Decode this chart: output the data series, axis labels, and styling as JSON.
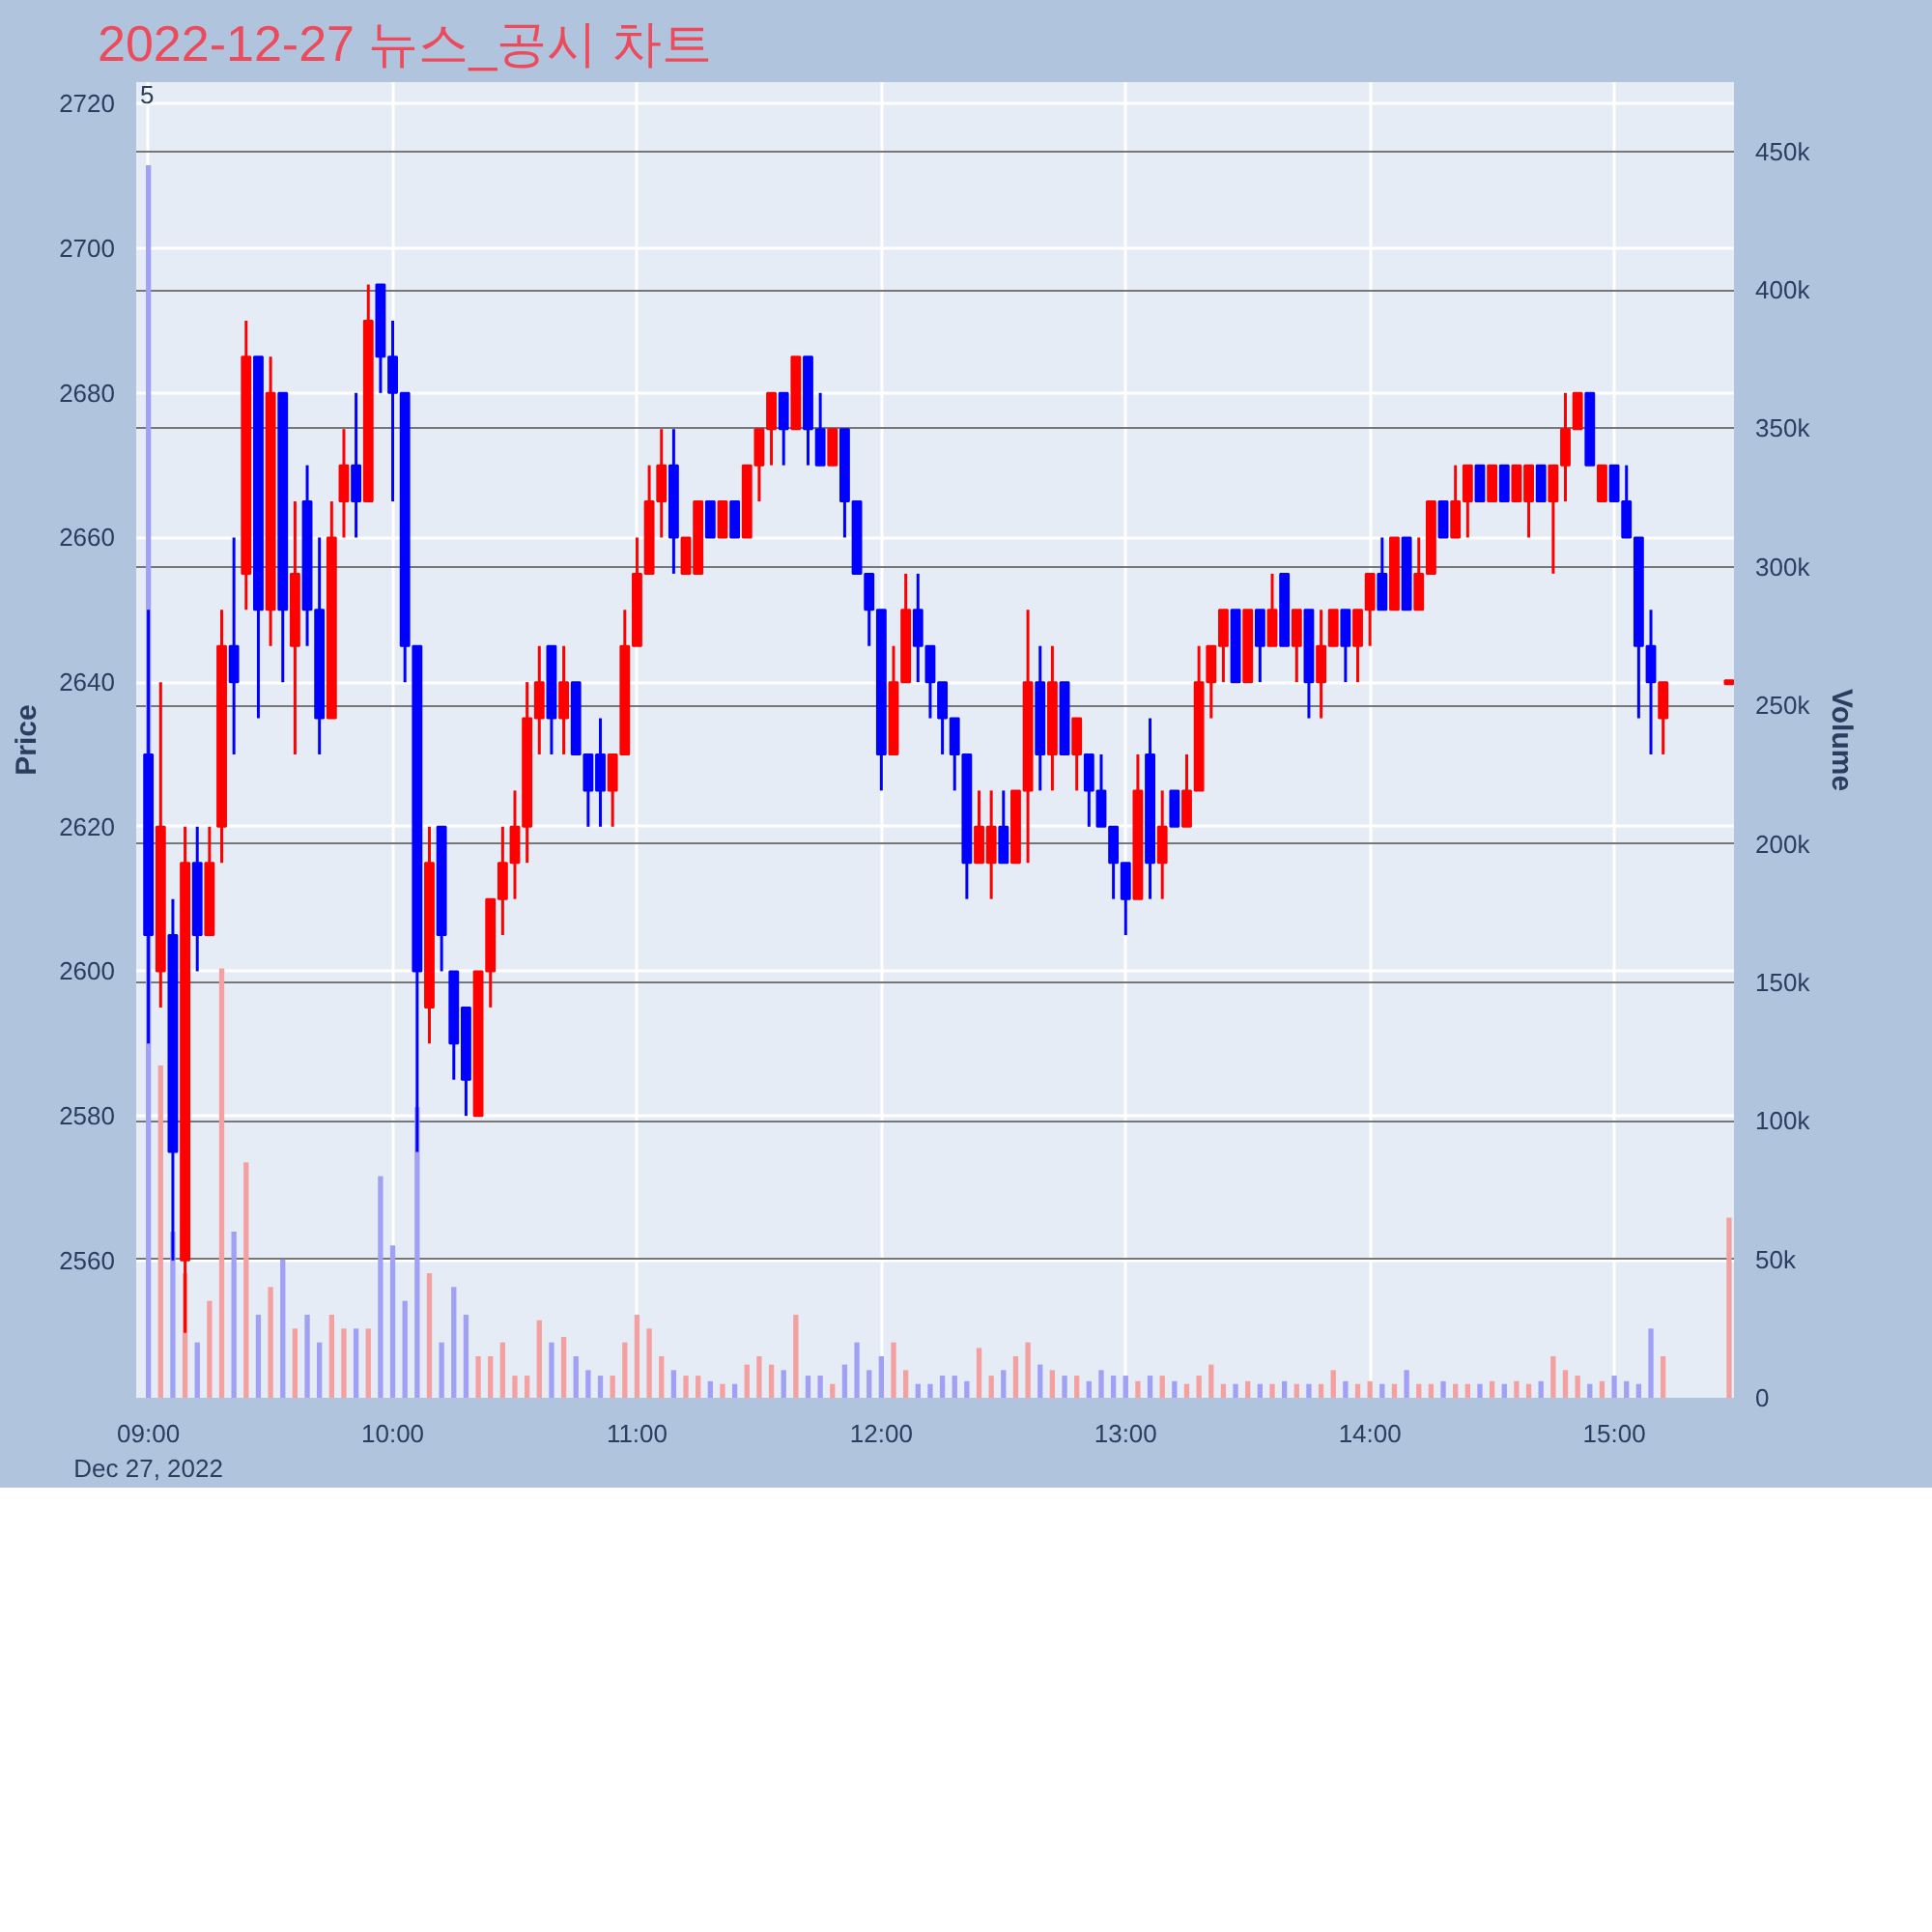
{
  "chart_data": {
    "type": "candlestick",
    "title": "2022-12-27 뉴스_공시 차트",
    "ylabel": "Price",
    "y2label": "Volume",
    "annotations": [
      "5"
    ],
    "x": [
      9.0,
      9.05,
      9.1,
      9.15,
      9.2,
      9.25,
      9.3,
      9.35,
      9.4,
      9.45,
      9.5,
      9.55,
      9.6,
      9.65,
      9.7,
      9.75,
      9.8,
      9.85,
      9.9,
      9.95,
      10.0,
      10.05,
      10.1,
      10.15,
      10.2,
      10.25,
      10.3,
      10.35,
      10.4,
      10.45,
      10.5,
      10.55,
      10.6,
      10.65,
      10.7,
      10.75,
      10.8,
      10.85,
      10.9,
      10.95,
      11.0,
      11.05,
      11.1,
      11.15,
      11.2,
      11.25,
      11.3,
      11.35,
      11.4,
      11.45,
      11.5,
      11.55,
      11.6,
      11.65,
      11.7,
      11.75,
      11.8,
      11.85,
      11.9,
      11.95,
      12.0,
      12.05,
      12.1,
      12.15,
      12.2,
      12.25,
      12.3,
      12.35,
      12.4,
      12.45,
      12.5,
      12.55,
      12.6,
      12.65,
      12.7,
      12.75,
      12.8,
      12.85,
      12.9,
      12.95,
      13.0,
      13.05,
      13.1,
      13.15,
      13.2,
      13.25,
      13.3,
      13.35,
      13.4,
      13.45,
      13.5,
      13.55,
      13.6,
      13.65,
      13.7,
      13.75,
      13.8,
      13.85,
      13.9,
      13.95,
      14.0,
      14.05,
      14.1,
      14.15,
      14.2,
      14.25,
      14.3,
      14.35,
      14.4,
      14.45,
      14.5,
      14.55,
      14.6,
      14.65,
      14.7,
      14.75,
      14.8,
      14.85,
      14.9,
      14.95,
      15.0,
      15.05,
      15.1,
      15.15,
      15.2,
      15.47
    ],
    "ohlc": [
      [
        2630,
        2650,
        2590,
        2605
      ],
      [
        2600,
        2640,
        2595,
        2620
      ],
      [
        2605,
        2610,
        2560,
        2575
      ],
      [
        2560,
        2620,
        2550,
        2615
      ],
      [
        2615,
        2620,
        2600,
        2605
      ],
      [
        2605,
        2620,
        2605,
        2615
      ],
      [
        2620,
        2650,
        2615,
        2645
      ],
      [
        2645,
        2660,
        2630,
        2640
      ],
      [
        2655,
        2690,
        2650,
        2685
      ],
      [
        2685,
        2685,
        2635,
        2650
      ],
      [
        2650,
        2685,
        2645,
        2680
      ],
      [
        2680,
        2680,
        2640,
        2650
      ],
      [
        2645,
        2665,
        2630,
        2655
      ],
      [
        2665,
        2670,
        2645,
        2650
      ],
      [
        2650,
        2660,
        2630,
        2635
      ],
      [
        2635,
        2665,
        2635,
        2660
      ],
      [
        2665,
        2675,
        2660,
        2670
      ],
      [
        2670,
        2680,
        2660,
        2665
      ],
      [
        2665,
        2695,
        2665,
        2690
      ],
      [
        2695,
        2695,
        2680,
        2685
      ],
      [
        2685,
        2690,
        2665,
        2680
      ],
      [
        2680,
        2680,
        2640,
        2645
      ],
      [
        2645,
        2645,
        2575,
        2600
      ],
      [
        2595,
        2620,
        2590,
        2615
      ],
      [
        2620,
        2620,
        2600,
        2605
      ],
      [
        2600,
        2600,
        2585,
        2590
      ],
      [
        2595,
        2595,
        2580,
        2585
      ],
      [
        2580,
        2600,
        2580,
        2600
      ],
      [
        2600,
        2610,
        2595,
        2610
      ],
      [
        2610,
        2620,
        2605,
        2615
      ],
      [
        2615,
        2625,
        2610,
        2620
      ],
      [
        2620,
        2640,
        2615,
        2635
      ],
      [
        2635,
        2645,
        2630,
        2640
      ],
      [
        2645,
        2645,
        2630,
        2635
      ],
      [
        2635,
        2645,
        2630,
        2640
      ],
      [
        2640,
        2640,
        2630,
        2630
      ],
      [
        2630,
        2630,
        2620,
        2625
      ],
      [
        2630,
        2635,
        2620,
        2625
      ],
      [
        2625,
        2630,
        2620,
        2630
      ],
      [
        2630,
        2650,
        2630,
        2645
      ],
      [
        2645,
        2660,
        2645,
        2655
      ],
      [
        2655,
        2670,
        2655,
        2665
      ],
      [
        2665,
        2675,
        2660,
        2670
      ],
      [
        2670,
        2675,
        2655,
        2660
      ],
      [
        2655,
        2660,
        2655,
        2660
      ],
      [
        2655,
        2665,
        2655,
        2665
      ],
      [
        2665,
        2665,
        2660,
        2660
      ],
      [
        2660,
        2665,
        2660,
        2665
      ],
      [
        2665,
        2665,
        2660,
        2660
      ],
      [
        2660,
        2670,
        2660,
        2670
      ],
      [
        2670,
        2675,
        2665,
        2675
      ],
      [
        2675,
        2680,
        2670,
        2680
      ],
      [
        2680,
        2680,
        2670,
        2675
      ],
      [
        2675,
        2685,
        2675,
        2685
      ],
      [
        2685,
        2685,
        2670,
        2675
      ],
      [
        2675,
        2680,
        2670,
        2670
      ],
      [
        2670,
        2675,
        2670,
        2675
      ],
      [
        2675,
        2675,
        2660,
        2665
      ],
      [
        2665,
        2665,
        2655,
        2655
      ],
      [
        2655,
        2655,
        2645,
        2650
      ],
      [
        2650,
        2650,
        2625,
        2630
      ],
      [
        2630,
        2645,
        2630,
        2640
      ],
      [
        2640,
        2655,
        2640,
        2650
      ],
      [
        2650,
        2655,
        2640,
        2645
      ],
      [
        2645,
        2645,
        2635,
        2640
      ],
      [
        2640,
        2640,
        2630,
        2635
      ],
      [
        2635,
        2635,
        2625,
        2630
      ],
      [
        2630,
        2630,
        2610,
        2615
      ],
      [
        2615,
        2625,
        2615,
        2620
      ],
      [
        2615,
        2625,
        2610,
        2620
      ],
      [
        2620,
        2625,
        2615,
        2615
      ],
      [
        2615,
        2625,
        2615,
        2625
      ],
      [
        2625,
        2650,
        2615,
        2640
      ],
      [
        2640,
        2645,
        2625,
        2630
      ],
      [
        2630,
        2645,
        2625,
        2640
      ],
      [
        2640,
        2640,
        2630,
        2630
      ],
      [
        2630,
        2635,
        2625,
        2635
      ],
      [
        2630,
        2630,
        2620,
        2625
      ],
      [
        2625,
        2630,
        2620,
        2620
      ],
      [
        2620,
        2620,
        2610,
        2615
      ],
      [
        2615,
        2615,
        2605,
        2610
      ],
      [
        2610,
        2630,
        2610,
        2625
      ],
      [
        2630,
        2635,
        2610,
        2615
      ],
      [
        2615,
        2625,
        2610,
        2620
      ],
      [
        2625,
        2625,
        2620,
        2620
      ],
      [
        2620,
        2630,
        2620,
        2625
      ],
      [
        2625,
        2645,
        2625,
        2640
      ],
      [
        2640,
        2645,
        2635,
        2645
      ],
      [
        2645,
        2650,
        2640,
        2650
      ],
      [
        2650,
        2650,
        2640,
        2640
      ],
      [
        2640,
        2650,
        2640,
        2650
      ],
      [
        2650,
        2650,
        2640,
        2645
      ],
      [
        2645,
        2655,
        2645,
        2650
      ],
      [
        2655,
        2655,
        2645,
        2645
      ],
      [
        2645,
        2650,
        2640,
        2650
      ],
      [
        2650,
        2650,
        2635,
        2640
      ],
      [
        2640,
        2650,
        2635,
        2645
      ],
      [
        2645,
        2650,
        2645,
        2650
      ],
      [
        2650,
        2650,
        2640,
        2645
      ],
      [
        2645,
        2650,
        2640,
        2650
      ],
      [
        2650,
        2655,
        2645,
        2655
      ],
      [
        2655,
        2660,
        2650,
        2650
      ],
      [
        2650,
        2660,
        2650,
        2660
      ],
      [
        2660,
        2660,
        2650,
        2650
      ],
      [
        2650,
        2660,
        2650,
        2655
      ],
      [
        2655,
        2665,
        2655,
        2665
      ],
      [
        2665,
        2665,
        2660,
        2660
      ],
      [
        2660,
        2670,
        2660,
        2665
      ],
      [
        2665,
        2670,
        2660,
        2670
      ],
      [
        2670,
        2670,
        2665,
        2665
      ],
      [
        2665,
        2670,
        2665,
        2670
      ],
      [
        2670,
        2670,
        2665,
        2665
      ],
      [
        2665,
        2670,
        2665,
        2670
      ],
      [
        2665,
        2670,
        2660,
        2670
      ],
      [
        2670,
        2670,
        2665,
        2665
      ],
      [
        2665,
        2670,
        2655,
        2670
      ],
      [
        2670,
        2680,
        2665,
        2675
      ],
      [
        2675,
        2680,
        2675,
        2680
      ],
      [
        2680,
        2680,
        2670,
        2670
      ],
      [
        2665,
        2670,
        2665,
        2670
      ],
      [
        2670,
        2670,
        2665,
        2665
      ],
      [
        2665,
        2670,
        2660,
        2660
      ],
      [
        2660,
        2660,
        2635,
        2645
      ],
      [
        2645,
        2650,
        2630,
        2640
      ],
      [
        2635,
        2640,
        2630,
        2640
      ],
      [
        2640,
        2640,
        2640,
        2640
      ]
    ],
    "colors": [
      "#0000ff",
      "#ff0000",
      "#0000ff",
      "#ff0000",
      "#0000ff",
      "#ff0000",
      "#ff0000",
      "#0000ff",
      "#ff0000",
      "#0000ff",
      "#ff0000",
      "#0000ff",
      "#ff0000",
      "#0000ff",
      "#0000ff",
      "#ff0000",
      "#ff0000",
      "#0000ff",
      "#ff0000",
      "#0000ff",
      "#0000ff",
      "#0000ff",
      "#0000ff",
      "#ff0000",
      "#0000ff",
      "#0000ff",
      "#0000ff",
      "#ff0000",
      "#ff0000",
      "#ff0000",
      "#ff0000",
      "#ff0000",
      "#ff0000",
      "#0000ff",
      "#ff0000",
      "#0000ff",
      "#0000ff",
      "#0000ff",
      "#ff0000",
      "#ff0000",
      "#ff0000",
      "#ff0000",
      "#ff0000",
      "#0000ff",
      "#ff0000",
      "#ff0000",
      "#0000ff",
      "#ff0000",
      "#0000ff",
      "#ff0000",
      "#ff0000",
      "#ff0000",
      "#0000ff",
      "#ff0000",
      "#0000ff",
      "#0000ff",
      "#ff0000",
      "#0000ff",
      "#0000ff",
      "#0000ff",
      "#0000ff",
      "#ff0000",
      "#ff0000",
      "#0000ff",
      "#0000ff",
      "#0000ff",
      "#0000ff",
      "#0000ff",
      "#ff0000",
      "#ff0000",
      "#0000ff",
      "#ff0000",
      "#ff0000",
      "#0000ff",
      "#ff0000",
      "#0000ff",
      "#ff0000",
      "#0000ff",
      "#0000ff",
      "#0000ff",
      "#0000ff",
      "#ff0000",
      "#0000ff",
      "#ff0000",
      "#0000ff",
      "#ff0000",
      "#ff0000",
      "#ff0000",
      "#ff0000",
      "#0000ff",
      "#ff0000",
      "#0000ff",
      "#ff0000",
      "#0000ff",
      "#ff0000",
      "#0000ff",
      "#ff0000",
      "#ff0000",
      "#0000ff",
      "#ff0000",
      "#ff0000",
      "#0000ff",
      "#ff0000",
      "#0000ff",
      "#ff0000",
      "#ff0000",
      "#0000ff",
      "#ff0000",
      "#ff0000",
      "#0000ff",
      "#ff0000",
      "#0000ff",
      "#ff0000",
      "#ff0000",
      "#0000ff",
      "#ff0000",
      "#ff0000",
      "#ff0000",
      "#0000ff",
      "#ff0000",
      "#0000ff",
      "#0000ff",
      "#0000ff",
      "#0000ff",
      "#ff0000",
      "#ff0000"
    ],
    "series": [
      {
        "type": "bar",
        "axis": "y2",
        "values": [
          445000,
          120000,
          60000,
          45000,
          20000,
          35000,
          155000,
          60000,
          85000,
          30000,
          40000,
          50000,
          25000,
          30000,
          20000,
          30000,
          25000,
          25000,
          25000,
          80000,
          55000,
          35000,
          105000,
          45000,
          20000,
          40000,
          30000,
          15000,
          15000,
          20000,
          8000,
          8000,
          28000,
          20000,
          22000,
          15000,
          10000,
          8000,
          8000,
          20000,
          30000,
          25000,
          15000,
          10000,
          8000,
          8000,
          6000,
          5000,
          5000,
          12000,
          15000,
          12000,
          10000,
          30000,
          8000,
          8000,
          5000,
          12000,
          20000,
          10000,
          15000,
          20000,
          10000,
          5000,
          5000,
          8000,
          8000,
          6000,
          18000,
          8000,
          10000,
          15000,
          20000,
          12000,
          10000,
          8000,
          8000,
          6000,
          10000,
          8000,
          8000,
          6000,
          8000,
          8000,
          6000,
          5000,
          8000,
          12000,
          5000,
          5000,
          6000,
          5000,
          5000,
          6000,
          5000,
          5000,
          5000,
          10000,
          6000,
          5000,
          6000,
          5000,
          5000,
          10000,
          5000,
          5000,
          6000,
          5000,
          5000,
          5000,
          6000,
          5000,
          6000,
          5000,
          6000,
          15000,
          10000,
          8000,
          5000,
          6000,
          8000,
          6000,
          5000,
          25000,
          15000,
          65000
        ],
        "colors": [
          "#a0a0f5",
          "#f5a0a0",
          "#a0a0f5",
          "#f5a0a0",
          "#a0a0f5",
          "#f5a0a0",
          "#f5a0a0",
          "#a0a0f5",
          "#f5a0a0",
          "#a0a0f5",
          "#f5a0a0",
          "#a0a0f5",
          "#f5a0a0",
          "#a0a0f5",
          "#a0a0f5",
          "#f5a0a0",
          "#f5a0a0",
          "#a0a0f5",
          "#f5a0a0",
          "#a0a0f5",
          "#a0a0f5",
          "#a0a0f5",
          "#a0a0f5",
          "#f5a0a0",
          "#a0a0f5",
          "#a0a0f5",
          "#a0a0f5",
          "#f5a0a0",
          "#f5a0a0",
          "#f5a0a0",
          "#f5a0a0",
          "#f5a0a0",
          "#f5a0a0",
          "#a0a0f5",
          "#f5a0a0",
          "#a0a0f5",
          "#a0a0f5",
          "#a0a0f5",
          "#f5a0a0",
          "#f5a0a0",
          "#f5a0a0",
          "#f5a0a0",
          "#f5a0a0",
          "#a0a0f5",
          "#f5a0a0",
          "#f5a0a0",
          "#a0a0f5",
          "#f5a0a0",
          "#a0a0f5",
          "#f5a0a0",
          "#f5a0a0",
          "#f5a0a0",
          "#a0a0f5",
          "#f5a0a0",
          "#a0a0f5",
          "#a0a0f5",
          "#f5a0a0",
          "#a0a0f5",
          "#a0a0f5",
          "#a0a0f5",
          "#a0a0f5",
          "#f5a0a0",
          "#f5a0a0",
          "#a0a0f5",
          "#a0a0f5",
          "#a0a0f5",
          "#a0a0f5",
          "#a0a0f5",
          "#f5a0a0",
          "#f5a0a0",
          "#a0a0f5",
          "#f5a0a0",
          "#f5a0a0",
          "#a0a0f5",
          "#f5a0a0",
          "#a0a0f5",
          "#f5a0a0",
          "#a0a0f5",
          "#a0a0f5",
          "#a0a0f5",
          "#a0a0f5",
          "#f5a0a0",
          "#a0a0f5",
          "#f5a0a0",
          "#a0a0f5",
          "#f5a0a0",
          "#f5a0a0",
          "#f5a0a0",
          "#f5a0a0",
          "#a0a0f5",
          "#f5a0a0",
          "#a0a0f5",
          "#f5a0a0",
          "#a0a0f5",
          "#f5a0a0",
          "#a0a0f5",
          "#f5a0a0",
          "#f5a0a0",
          "#a0a0f5",
          "#f5a0a0",
          "#f5a0a0",
          "#a0a0f5",
          "#f5a0a0",
          "#a0a0f5",
          "#f5a0a0",
          "#f5a0a0",
          "#a0a0f5",
          "#f5a0a0",
          "#f5a0a0",
          "#a0a0f5",
          "#f5a0a0",
          "#a0a0f5",
          "#f5a0a0",
          "#f5a0a0",
          "#a0a0f5",
          "#f5a0a0",
          "#f5a0a0",
          "#f5a0a0",
          "#a0a0f5",
          "#f5a0a0",
          "#a0a0f5",
          "#a0a0f5",
          "#a0a0f5",
          "#a0a0f5",
          "#f5a0a0",
          "#f5a0a0"
        ]
      }
    ],
    "xlim": [
      8.95,
      15.49
    ],
    "xticks": [
      {
        "value": 9,
        "label": "09:00\nDec 27, 2022"
      },
      {
        "value": 10,
        "label": "10:00"
      },
      {
        "value": 11,
        "label": "11:00"
      },
      {
        "value": 12,
        "label": "12:00"
      },
      {
        "value": 13,
        "label": "13:00"
      },
      {
        "value": 14,
        "label": "14:00"
      },
      {
        "value": 15,
        "label": "15:00"
      }
    ],
    "ylim": [
      2541,
      2723
    ],
    "yticks": [
      2560,
      2580,
      2600,
      2620,
      2640,
      2660,
      2680,
      2700,
      2720
    ],
    "y2lim": [
      0,
      475000
    ],
    "y2ticks": [
      {
        "value": 0,
        "label": "0"
      },
      {
        "value": 50000,
        "label": "50k"
      },
      {
        "value": 100000,
        "label": "100k"
      },
      {
        "value": 150000,
        "label": "150k"
      },
      {
        "value": 200000,
        "label": "200k"
      },
      {
        "value": 250000,
        "label": "250k"
      },
      {
        "value": 300000,
        "label": "300k"
      },
      {
        "value": 350000,
        "label": "350k"
      },
      {
        "value": 400000,
        "label": "400k"
      },
      {
        "value": 450000,
        "label": "450k"
      }
    ],
    "grid": true
  }
}
